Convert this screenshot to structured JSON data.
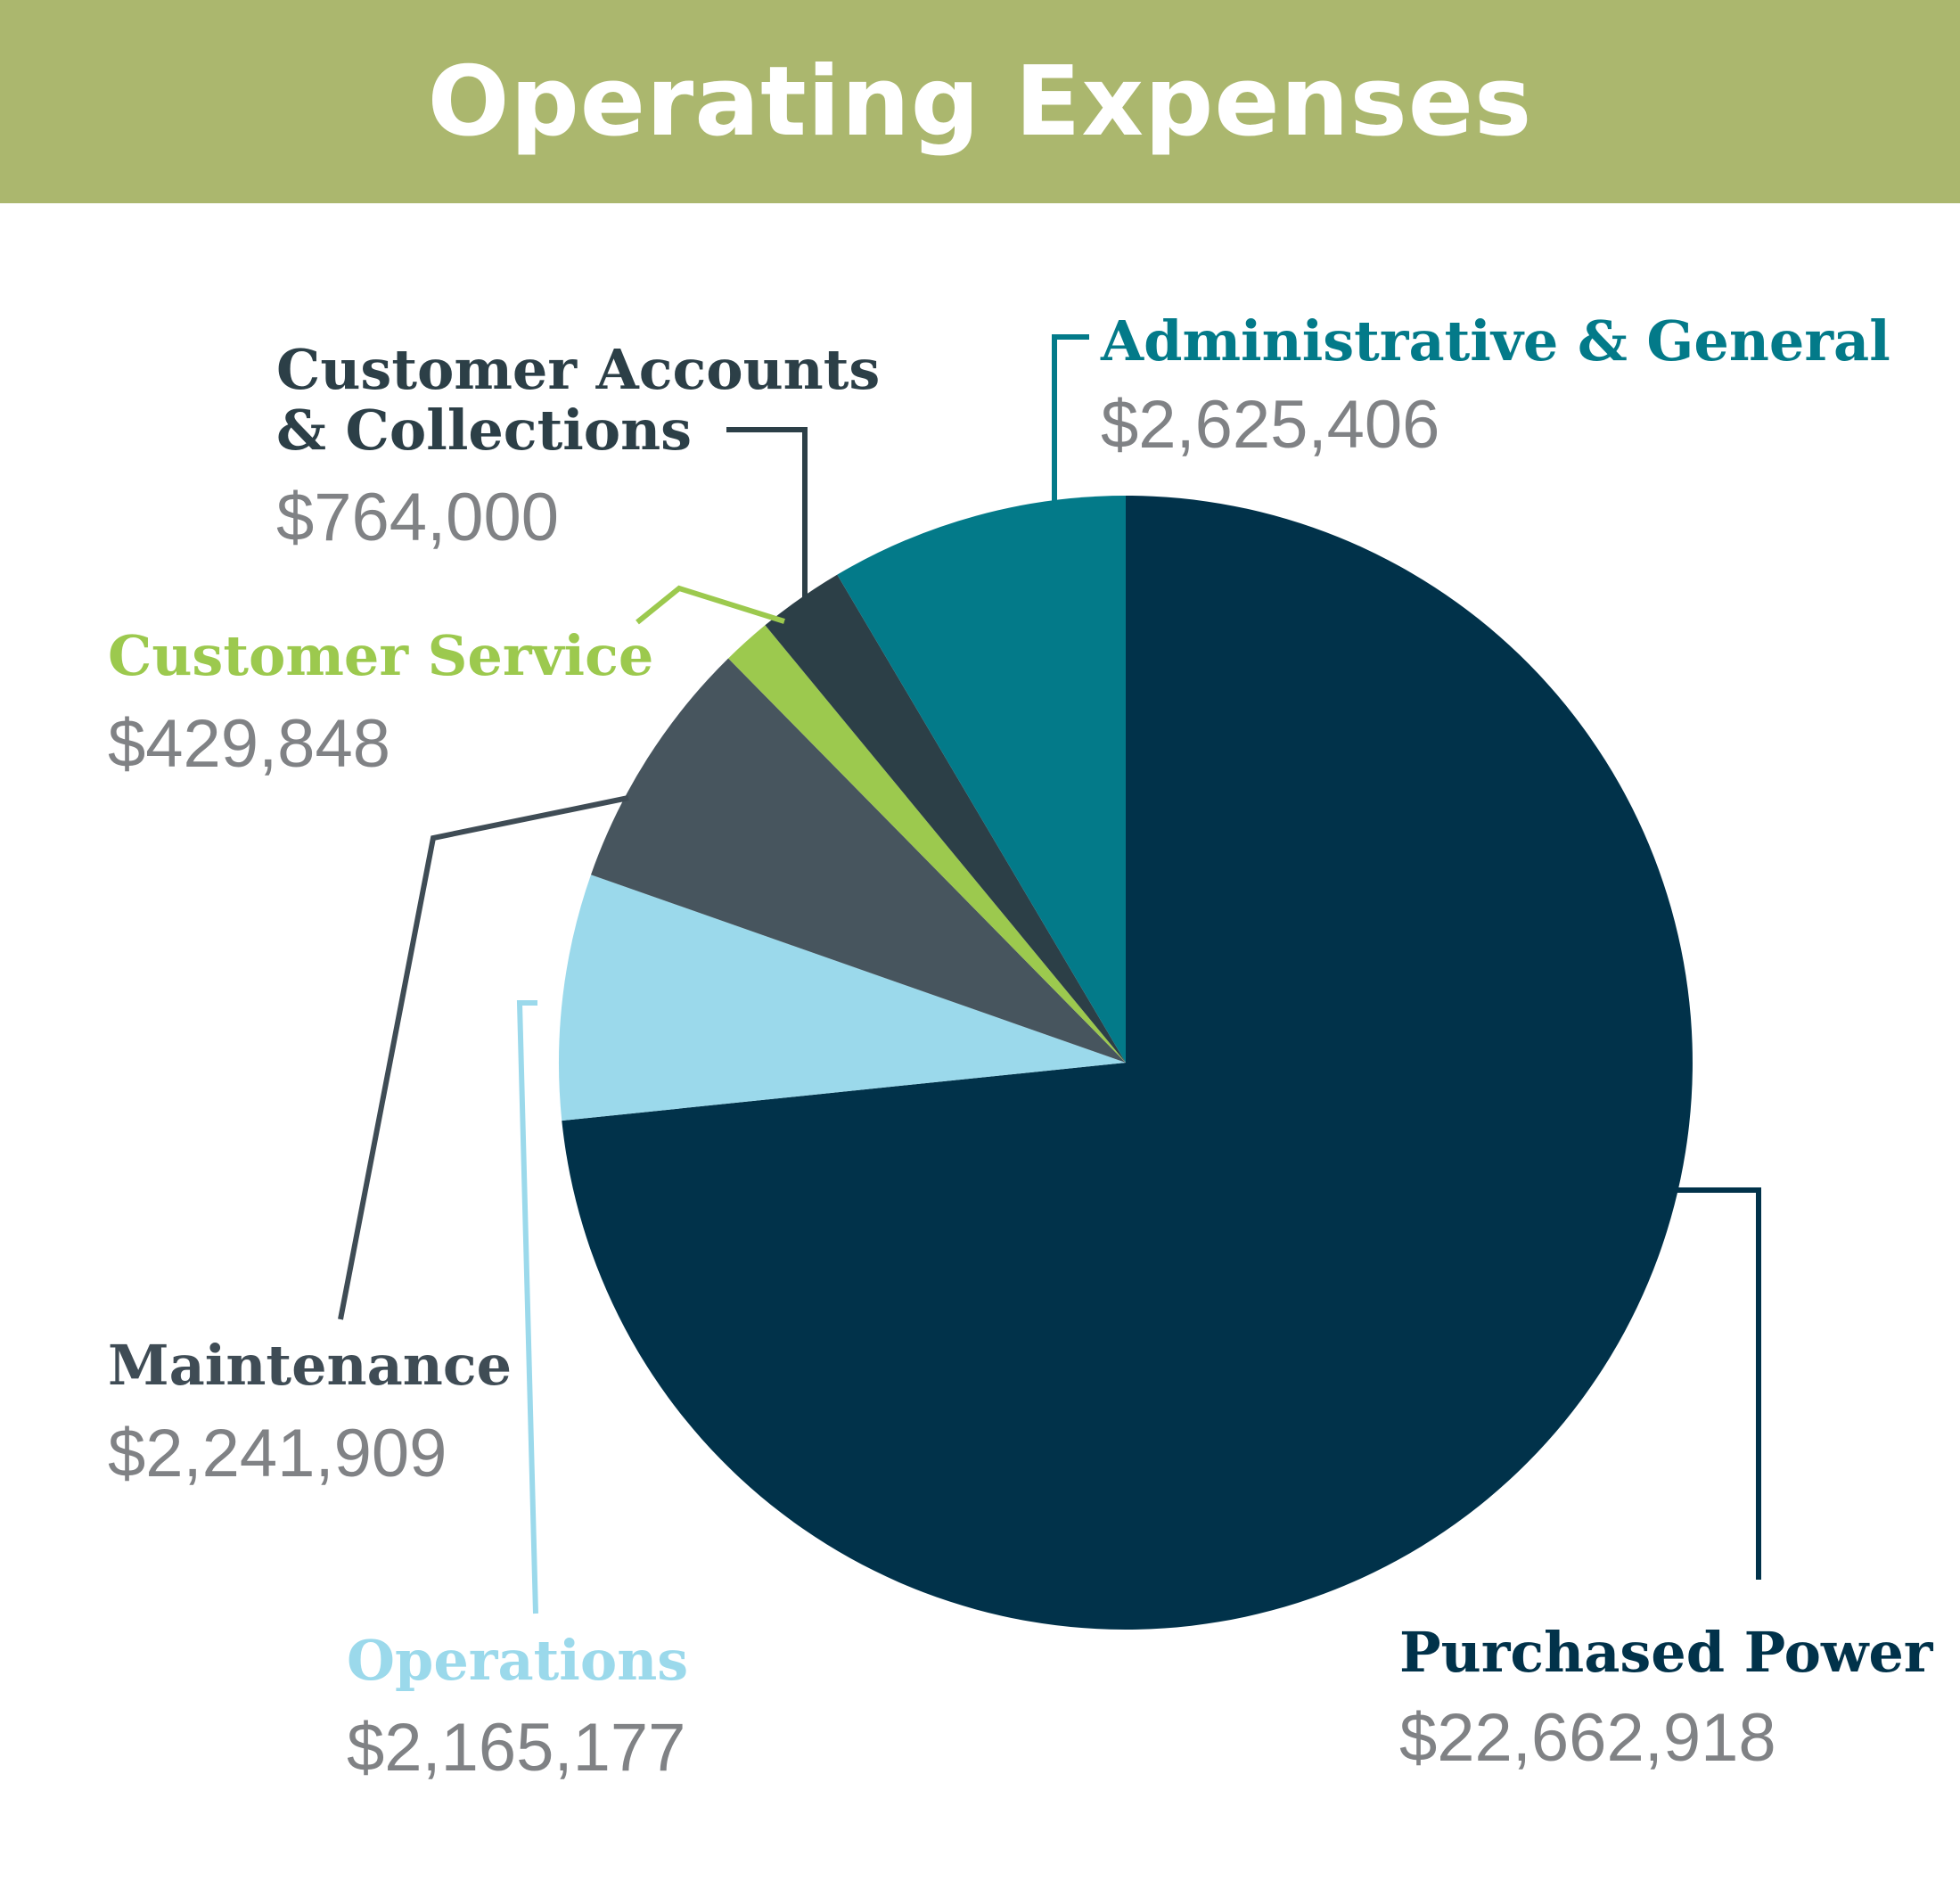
{
  "chart_data": {
    "type": "pie",
    "title": "Operating Expenses",
    "slices": [
      {
        "name": "Purchased Power",
        "value": 22662918,
        "value_label": "$22,662,918",
        "color": "#01324a",
        "label_color": "#01324a"
      },
      {
        "name": "Operations",
        "value": 2165177,
        "value_label": "$2,165,177",
        "color": "#9bd9eb",
        "label_color": "#9bd9eb"
      },
      {
        "name": "Maintenance",
        "value": 2241909,
        "value_label": "$2,241,909",
        "color": "#47555e",
        "label_color": "#3f4c55"
      },
      {
        "name": "Customer Service",
        "value": 429848,
        "value_label": "$429,848",
        "color": "#9cc94e",
        "label_color": "#9cc94e"
      },
      {
        "name_lines": [
          "Customer Accounts",
          "& Collections"
        ],
        "value": 764000,
        "value_label": "$764,000",
        "color": "#2c3f47",
        "label_color": "#2c3f47"
      },
      {
        "name": "Administrative & General",
        "value": 2625406,
        "value_label": "$2,625,406",
        "color": "#037a89",
        "label_color": "#037a89"
      }
    ]
  }
}
